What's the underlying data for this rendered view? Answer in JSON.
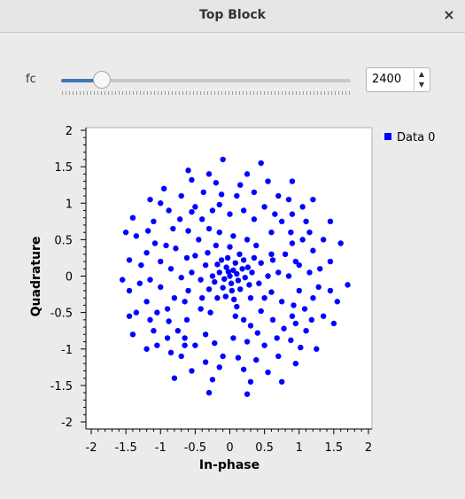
{
  "window": {
    "title": "Top Block",
    "close_glyph": "×"
  },
  "control": {
    "label": "fc",
    "value": "2400",
    "slider_fraction": 0.14,
    "spin_up_glyph": "▲",
    "spin_down_glyph": "▼"
  },
  "chart_data": {
    "type": "scatter",
    "xlabel": "In-phase",
    "ylabel": "Quadrature",
    "xlim": [
      -2,
      2
    ],
    "ylim": [
      -2,
      2
    ],
    "x_ticks": [
      "-2",
      "-1.5",
      "-1",
      "-0.5",
      "0",
      "0.5",
      "1",
      "1.5",
      "2"
    ],
    "y_ticks": [
      "2",
      "1.5",
      "1",
      "0.5",
      "0",
      "-0.5",
      "-1",
      "-1.5",
      "-2"
    ],
    "legend_position": "top-right",
    "series": [
      {
        "name": "Data 0",
        "color": "#0000ff",
        "points": [
          [
            0.0,
            0.0
          ],
          [
            0.05,
            0.08
          ],
          [
            -0.08,
            -0.04
          ],
          [
            0.12,
            -0.06
          ],
          [
            -0.05,
            0.12
          ],
          [
            0.08,
            0.18
          ],
          [
            -0.15,
            0.05
          ],
          [
            0.18,
            0.1
          ],
          [
            -0.1,
            -0.16
          ],
          [
            0.03,
            -0.2
          ],
          [
            0.22,
            -0.02
          ],
          [
            -0.22,
            -0.08
          ],
          [
            0.15,
            -0.18
          ],
          [
            -0.18,
            0.16
          ],
          [
            0.26,
            0.12
          ],
          [
            -0.03,
            0.25
          ],
          [
            0.1,
            0.03
          ],
          [
            -0.12,
            0.22
          ],
          [
            0.2,
            0.22
          ],
          [
            -0.25,
            0.0
          ],
          [
            0.28,
            -0.12
          ],
          [
            -0.06,
            -0.28
          ],
          [
            0.14,
            0.3
          ],
          [
            0.32,
            0.05
          ],
          [
            -0.3,
            -0.18
          ],
          [
            0.02,
            -0.1
          ],
          [
            -0.02,
            0.06
          ],
          [
            0.06,
            -0.32
          ],
          [
            -0.18,
            -0.3
          ],
          [
            0.35,
            0.25
          ],
          [
            -0.35,
            0.15
          ],
          [
            0.3,
            -0.3
          ],
          [
            -0.32,
            0.32
          ],
          [
            0.42,
            -0.1
          ],
          [
            -0.42,
            -0.05
          ],
          [
            0.0,
            0.4
          ],
          [
            0.1,
            -0.42
          ],
          [
            -0.4,
            -0.3
          ],
          [
            0.45,
            0.18
          ],
          [
            -0.2,
            0.42
          ],
          [
            0.55,
            0.0
          ],
          [
            -0.55,
            0.05
          ],
          [
            0.5,
            -0.3
          ],
          [
            -0.5,
            0.28
          ],
          [
            0.25,
            0.5
          ],
          [
            -0.28,
            -0.5
          ],
          [
            0.38,
            0.42
          ],
          [
            -0.42,
            -0.45
          ],
          [
            0.05,
            0.55
          ],
          [
            0.08,
            -0.55
          ],
          [
            0.62,
            0.22
          ],
          [
            -0.6,
            -0.2
          ],
          [
            0.6,
            -0.22
          ],
          [
            -0.62,
            0.25
          ],
          [
            0.2,
            -0.6
          ],
          [
            -0.15,
            0.6
          ],
          [
            0.45,
            -0.48
          ],
          [
            -0.45,
            0.5
          ],
          [
            0.7,
            0.05
          ],
          [
            -0.7,
            -0.02
          ],
          [
            0.8,
            0.3
          ],
          [
            -0.8,
            -0.3
          ],
          [
            0.75,
            -0.35
          ],
          [
            -0.78,
            0.38
          ],
          [
            0.85,
            0.0
          ],
          [
            -0.85,
            0.1
          ],
          [
            0.35,
            0.78
          ],
          [
            -0.35,
            -0.8
          ],
          [
            0.4,
            -0.78
          ],
          [
            -0.4,
            0.78
          ],
          [
            0.0,
            0.85
          ],
          [
            0.05,
            -0.85
          ],
          [
            0.6,
            0.6
          ],
          [
            -0.62,
            -0.6
          ],
          [
            0.62,
            -0.6
          ],
          [
            -0.6,
            0.62
          ],
          [
            0.9,
            0.45
          ],
          [
            -0.9,
            -0.45
          ],
          [
            0.92,
            -0.4
          ],
          [
            -0.92,
            0.42
          ],
          [
            0.2,
            0.9
          ],
          [
            -0.22,
            -0.92
          ],
          [
            0.25,
            -0.9
          ],
          [
            -0.25,
            0.9
          ],
          [
            1.0,
            0.15
          ],
          [
            -1.0,
            -0.15
          ],
          [
            1.0,
            -0.2
          ],
          [
            -1.0,
            0.2
          ],
          [
            0.75,
            0.75
          ],
          [
            -0.75,
            -0.75
          ],
          [
            0.78,
            -0.72
          ],
          [
            -0.72,
            0.78
          ],
          [
            0.5,
            0.95
          ],
          [
            -0.5,
            -0.95
          ],
          [
            0.5,
            -0.95
          ],
          [
            -0.5,
            0.95
          ],
          [
            1.05,
            0.5
          ],
          [
            -1.05,
            -0.5
          ],
          [
            1.08,
            -0.45
          ],
          [
            -1.08,
            0.45
          ],
          [
            1.15,
            0.05
          ],
          [
            -1.15,
            -0.05
          ],
          [
            0.1,
            1.1
          ],
          [
            -0.1,
            -1.1
          ],
          [
            0.12,
            -1.12
          ],
          [
            -0.12,
            1.12
          ],
          [
            0.9,
            0.85
          ],
          [
            -0.9,
            -0.85
          ],
          [
            0.88,
            -0.88
          ],
          [
            -0.88,
            0.9
          ],
          [
            1.2,
            0.35
          ],
          [
            -1.2,
            -0.35
          ],
          [
            1.2,
            -0.3
          ],
          [
            -1.2,
            0.32
          ],
          [
            0.35,
            1.15
          ],
          [
            -0.35,
            -1.18
          ],
          [
            0.38,
            -1.15
          ],
          [
            -0.38,
            1.15
          ],
          [
            1.3,
            0.1
          ],
          [
            -1.3,
            -0.1
          ],
          [
            1.28,
            -0.15
          ],
          [
            -1.28,
            0.15
          ],
          [
            0.15,
            1.25
          ],
          [
            -0.15,
            -1.25
          ],
          [
            0.2,
            -1.28
          ],
          [
            -0.2,
            1.28
          ],
          [
            1.1,
            0.75
          ],
          [
            -1.1,
            -0.75
          ],
          [
            1.1,
            -0.75
          ],
          [
            -1.1,
            0.75
          ],
          [
            0.7,
            1.1
          ],
          [
            -0.7,
            -1.1
          ],
          [
            0.7,
            -1.1
          ],
          [
            -0.7,
            1.1
          ],
          [
            1.35,
            0.5
          ],
          [
            -1.35,
            -0.5
          ],
          [
            1.35,
            -0.55
          ],
          [
            -1.35,
            0.55
          ],
          [
            0.55,
            1.3
          ],
          [
            -0.55,
            -1.3
          ],
          [
            0.55,
            -1.32
          ],
          [
            -0.55,
            1.32
          ],
          [
            1.45,
            0.2
          ],
          [
            -1.45,
            -0.2
          ],
          [
            1.45,
            -0.2
          ],
          [
            -1.45,
            0.22
          ],
          [
            0.25,
            1.4
          ],
          [
            -0.25,
            -1.42
          ],
          [
            0.3,
            -1.45
          ],
          [
            -0.3,
            1.4
          ],
          [
            1.6,
            0.45
          ],
          [
            1.7,
            -0.12
          ],
          [
            -1.55,
            -0.05
          ],
          [
            -1.5,
            0.6
          ],
          [
            1.5,
            -0.65
          ],
          [
            -1.45,
            -0.55
          ],
          [
            0.45,
            1.55
          ],
          [
            -0.1,
            1.6
          ],
          [
            -0.6,
            1.45
          ],
          [
            0.9,
            1.3
          ],
          [
            -0.3,
            -1.6
          ],
          [
            0.25,
            -1.62
          ],
          [
            -0.8,
            -1.4
          ],
          [
            0.75,
            -1.45
          ],
          [
            1.2,
            1.05
          ],
          [
            -1.2,
            -1.0
          ],
          [
            1.25,
            -1.0
          ],
          [
            -1.15,
            1.05
          ],
          [
            1.55,
            -0.35
          ],
          [
            1.45,
            0.75
          ],
          [
            -1.4,
            0.8
          ],
          [
            -1.4,
            -0.8
          ],
          [
            0.95,
            -1.2
          ],
          [
            -0.95,
            1.2
          ],
          [
            0.6,
            0.3
          ],
          [
            -0.3,
            0.65
          ],
          [
            0.3,
            -0.68
          ],
          [
            -0.65,
            -0.35
          ],
          [
            0.95,
            0.2
          ],
          [
            -0.15,
            0.98
          ],
          [
            0.95,
            -0.65
          ],
          [
            -0.65,
            -0.95
          ],
          [
            1.05,
            0.95
          ],
          [
            -1.05,
            -0.95
          ],
          [
            0.85,
            1.05
          ],
          [
            -0.85,
            -1.05
          ],
          [
            1.02,
            -0.98
          ],
          [
            -1.0,
            1.0
          ],
          [
            0.65,
            0.85
          ],
          [
            -0.65,
            -0.85
          ],
          [
            0.68,
            -0.85
          ],
          [
            -0.82,
            0.65
          ],
          [
            0.88,
            0.6
          ],
          [
            -0.88,
            -0.62
          ],
          [
            0.9,
            -0.55
          ],
          [
            -0.55,
            0.88
          ],
          [
            1.15,
            0.6
          ],
          [
            -1.15,
            -0.6
          ],
          [
            1.18,
            -0.6
          ],
          [
            -1.18,
            0.62
          ]
        ]
      }
    ]
  }
}
